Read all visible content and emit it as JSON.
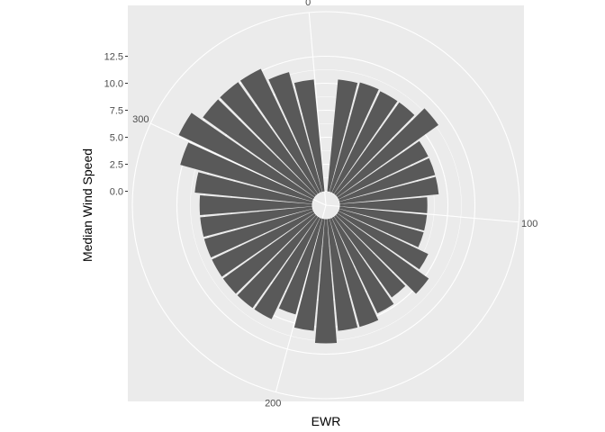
{
  "chart_data": {
    "type": "bar",
    "coord": "polar",
    "title": "",
    "xlabel": "EWR",
    "ylabel": "Median Wind Speed",
    "theta_ticks": [
      "0",
      "100",
      "200",
      "300"
    ],
    "radial_ticks": [
      "0.0",
      "2.5",
      "5.0",
      "7.5",
      "10.0",
      "12.5"
    ],
    "radial_lim": [
      -3.5,
      15.5
    ],
    "theta_lim": [
      0,
      360
    ],
    "bar_width_deg": 10,
    "x": [
      0,
      10,
      20,
      30,
      40,
      50,
      60,
      70,
      80,
      90,
      100,
      110,
      120,
      130,
      140,
      150,
      160,
      170,
      180,
      190,
      200,
      210,
      220,
      230,
      240,
      250,
      260,
      270,
      280,
      290,
      300,
      310,
      320,
      330,
      340,
      350
    ],
    "values": [
      0,
      10.4,
      10.5,
      10.4,
      10.4,
      11.5,
      9.2,
      9.2,
      9.2,
      8.1,
      8.1,
      8.1,
      9.2,
      10.4,
      9.2,
      9.8,
      10.4,
      10.4,
      11.5,
      10.4,
      9.2,
      10.4,
      10.4,
      10.4,
      10.4,
      10.4,
      10.4,
      10.4,
      10.9,
      12.7,
      13.8,
      12.7,
      12.7,
      12.7,
      11.5,
      10.4
    ],
    "colors": {
      "bar": "#595959",
      "panel": "#ebebeb",
      "grid": "#ffffff",
      "tick_text": "#4d4d4d"
    }
  }
}
